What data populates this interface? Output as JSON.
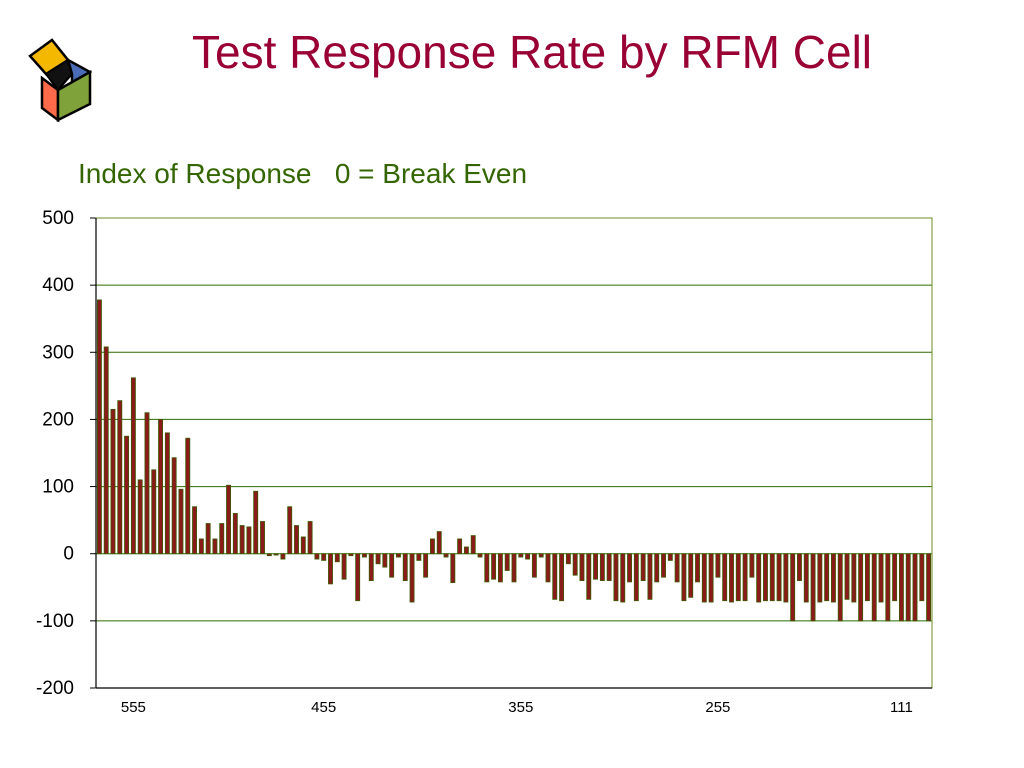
{
  "title": "Test Response Rate by RFM Cell",
  "colors": {
    "title": "#990033",
    "subtitle": "#336600",
    "bar_fill": "#8B1A1A",
    "bar_edge": "#3A5A00",
    "grid": "#2F6B00",
    "plot_border": "#6B8E23"
  },
  "logo": {
    "icon": "cube-icon",
    "face_colors": [
      "#F5B800",
      "#4A6BB5",
      "#FF6A4A",
      "#7FA33A",
      "#000000"
    ]
  },
  "chart_data": {
    "type": "bar",
    "title": "Test Response Rate by RFM Cell",
    "subtitle": "Index of Response   0 = Break Even",
    "xlabel": "",
    "ylabel": "",
    "ylim": [
      -200,
      500
    ],
    "yticks": [
      -200,
      -100,
      0,
      100,
      200,
      300,
      400,
      500
    ],
    "x_tick_labels": [
      {
        "label": "555",
        "index": 5
      },
      {
        "label": "455",
        "index": 33
      },
      {
        "label": "355",
        "index": 62
      },
      {
        "label": "255",
        "index": 91
      },
      {
        "label": "111",
        "index": 118
      }
    ],
    "grid": true,
    "legend": "none",
    "values": [
      378,
      308,
      215,
      228,
      175,
      262,
      110,
      210,
      125,
      200,
      180,
      143,
      96,
      172,
      70,
      22,
      45,
      22,
      45,
      102,
      60,
      42,
      40,
      93,
      48,
      -3,
      -2,
      -8,
      70,
      42,
      25,
      48,
      -8,
      -10,
      -45,
      -12,
      -38,
      -3,
      -70,
      -5,
      -40,
      -15,
      -20,
      -35,
      -5,
      -40,
      -72,
      -10,
      -35,
      22,
      33,
      -5,
      -43,
      22,
      10,
      27,
      -5,
      -42,
      -38,
      -42,
      -25,
      -42,
      -5,
      -8,
      -35,
      -5,
      -42,
      -68,
      -70,
      -15,
      -32,
      -40,
      -68,
      -38,
      -40,
      -40,
      -70,
      -72,
      -42,
      -70,
      -40,
      -68,
      -42,
      -35,
      -10,
      -42,
      -70,
      -65,
      -42,
      -72,
      -72,
      -35,
      -70,
      -72,
      -70,
      -70,
      -35,
      -72,
      -70,
      -70,
      -70,
      -72,
      -100,
      -40,
      -72,
      -100,
      -72,
      -70,
      -72,
      -100,
      -68,
      -72,
      -100,
      -70,
      -100,
      -72,
      -100,
      -70,
      -100,
      -100,
      -100,
      -70,
      -100
    ]
  }
}
